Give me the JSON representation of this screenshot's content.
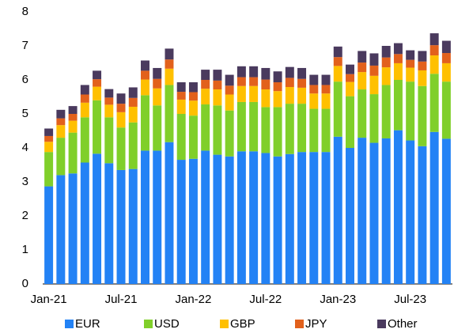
{
  "chart_data": {
    "type": "stacked_bar",
    "categories": [
      "Jan-21",
      null,
      null,
      null,
      null,
      null,
      "Jul-21",
      null,
      null,
      null,
      null,
      null,
      "Jan-22",
      null,
      null,
      null,
      null,
      null,
      "Jul-22",
      null,
      null,
      null,
      null,
      null,
      "Jan-23",
      null,
      null,
      null,
      null,
      null,
      "Jul-23",
      null,
      null,
      null
    ],
    "series": [
      {
        "name": "EUR",
        "color": "#2382f5",
        "values": [
          2.87,
          3.2,
          3.25,
          3.57,
          3.83,
          3.55,
          3.35,
          3.38,
          3.92,
          3.92,
          4.17,
          3.65,
          3.68,
          3.92,
          3.8,
          3.75,
          3.9,
          3.9,
          3.85,
          3.75,
          3.82,
          3.88,
          3.88,
          3.88,
          4.33,
          4.0,
          4.3,
          4.15,
          4.28,
          4.52,
          4.22,
          4.05,
          4.47,
          4.27
        ]
      },
      {
        "name": "USD",
        "color": "#80cf2a",
        "values": [
          1.01,
          1.1,
          1.2,
          1.33,
          1.57,
          1.35,
          1.25,
          1.37,
          1.63,
          1.33,
          1.68,
          1.35,
          1.27,
          1.36,
          1.45,
          1.35,
          1.45,
          1.45,
          1.35,
          1.45,
          1.48,
          1.42,
          1.27,
          1.27,
          1.62,
          1.52,
          1.42,
          1.43,
          1.57,
          1.48,
          1.73,
          1.77,
          1.71,
          1.68
        ]
      },
      {
        "name": "GBP",
        "color": "#ffc000",
        "values": [
          0.3,
          0.37,
          0.35,
          0.43,
          0.4,
          0.37,
          0.45,
          0.46,
          0.46,
          0.5,
          0.48,
          0.42,
          0.44,
          0.46,
          0.47,
          0.47,
          0.47,
          0.47,
          0.52,
          0.47,
          0.49,
          0.47,
          0.45,
          0.45,
          0.46,
          0.42,
          0.51,
          0.54,
          0.52,
          0.49,
          0.41,
          0.46,
          0.54,
          0.54
        ]
      },
      {
        "name": "JPY",
        "color": "#e2611c",
        "values": [
          0.17,
          0.2,
          0.2,
          0.24,
          0.22,
          0.21,
          0.25,
          0.26,
          0.26,
          0.28,
          0.27,
          0.23,
          0.25,
          0.26,
          0.26,
          0.26,
          0.26,
          0.26,
          0.29,
          0.26,
          0.27,
          0.26,
          0.25,
          0.25,
          0.26,
          0.23,
          0.28,
          0.3,
          0.29,
          0.27,
          0.23,
          0.26,
          0.3,
          0.3
        ]
      },
      {
        "name": "Other",
        "color": "#4a3a5e",
        "values": [
          0.22,
          0.25,
          0.23,
          0.28,
          0.25,
          0.25,
          0.3,
          0.31,
          0.3,
          0.32,
          0.32,
          0.28,
          0.29,
          0.3,
          0.32,
          0.32,
          0.32,
          0.32,
          0.34,
          0.32,
          0.32,
          0.32,
          0.3,
          0.3,
          0.31,
          0.28,
          0.34,
          0.36,
          0.34,
          0.32,
          0.28,
          0.31,
          0.35,
          0.36
        ]
      }
    ],
    "ylim": [
      0,
      8
    ],
    "yticks": [
      0,
      1,
      2,
      3,
      4,
      5,
      6,
      7,
      8
    ],
    "grid": false
  }
}
